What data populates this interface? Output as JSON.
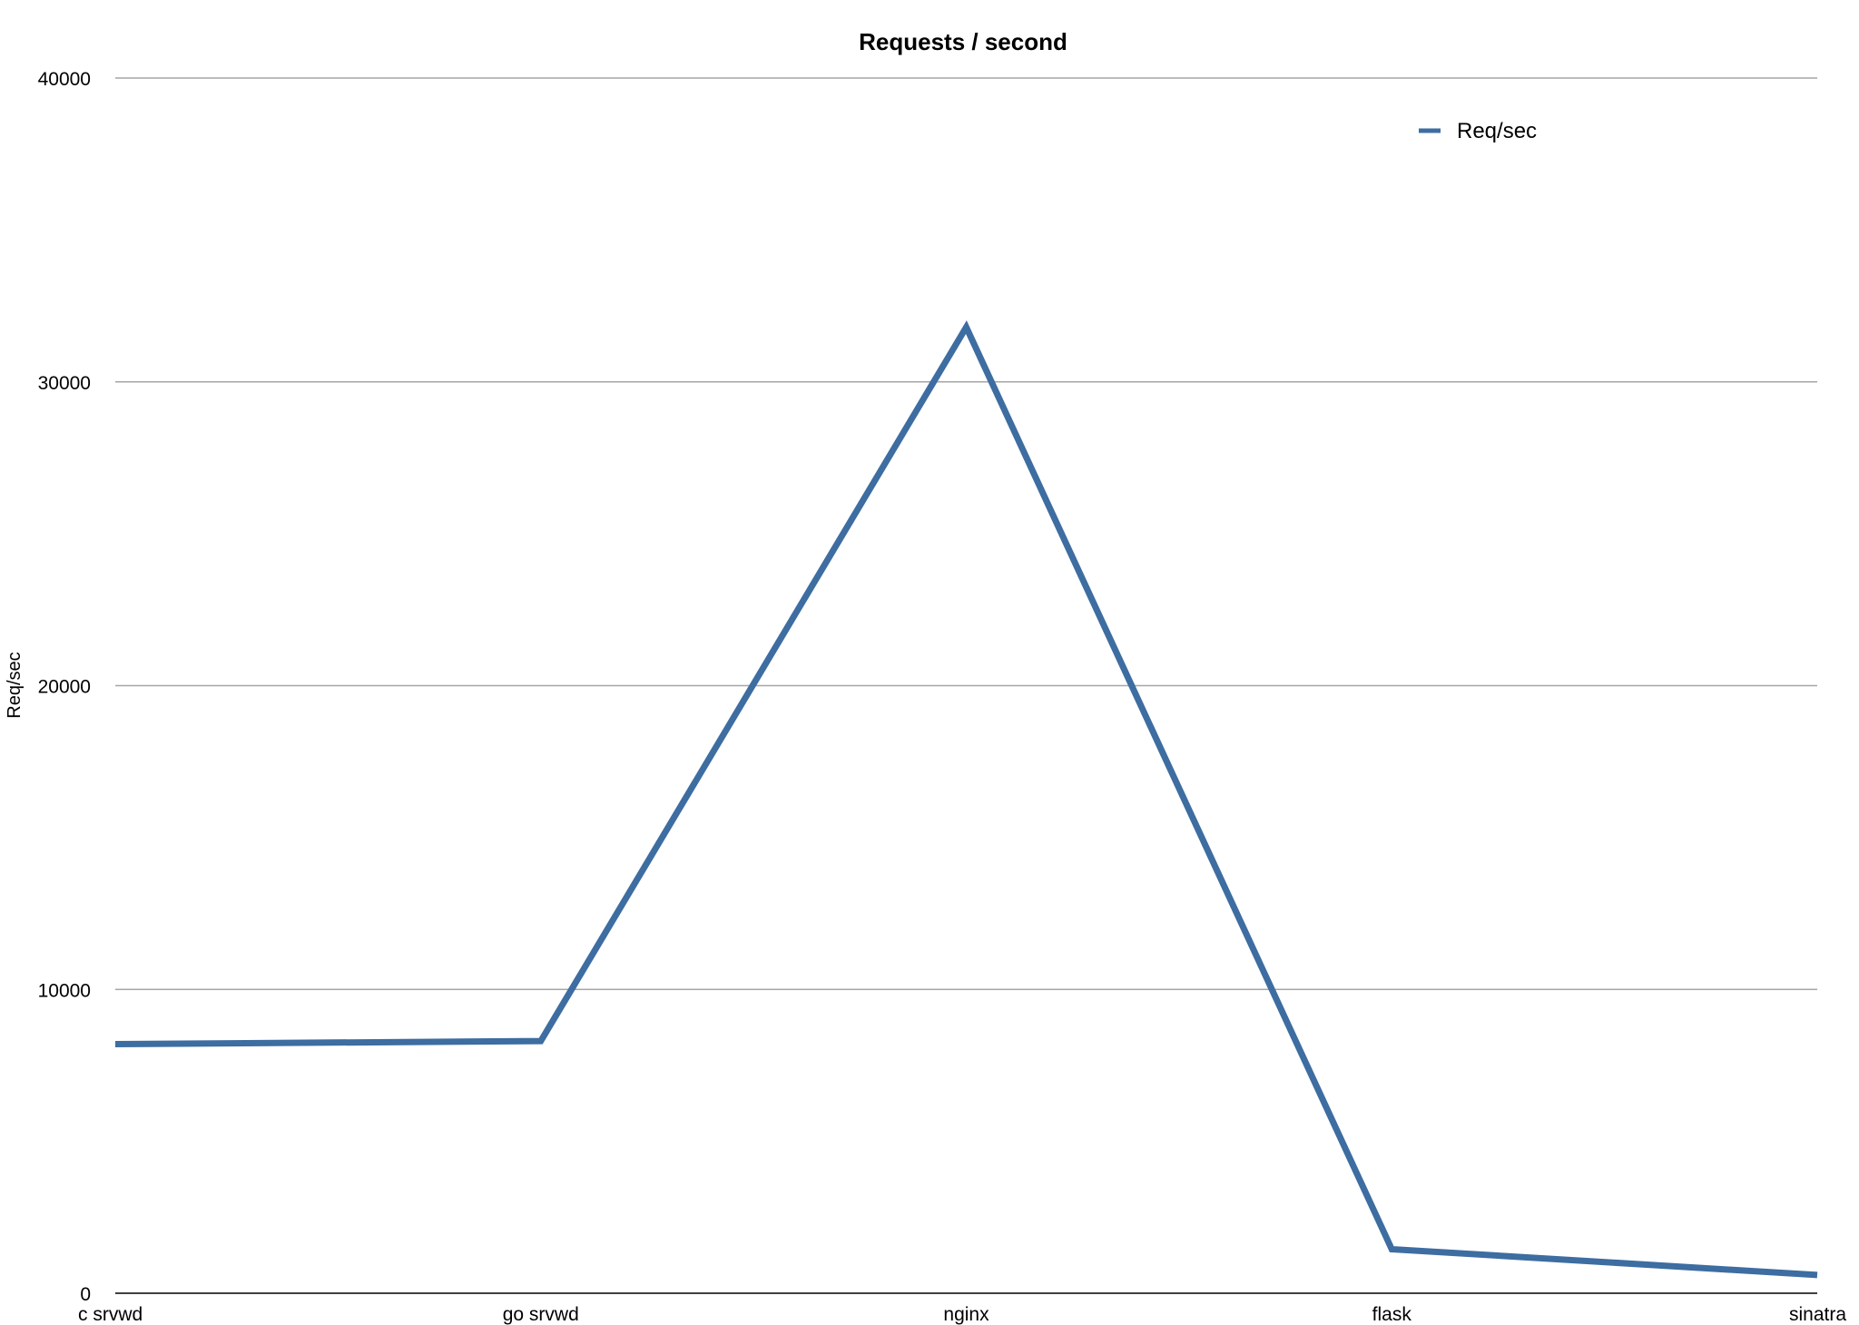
{
  "chart_data": {
    "type": "line",
    "title": "Requests / second",
    "xlabel": "",
    "ylabel": "Req/sec",
    "categories": [
      "c srvwd",
      "go srvwd",
      "nginx",
      "flask",
      "sinatra"
    ],
    "series": [
      {
        "name": "Req/sec",
        "color": "#3d6da1",
        "values": [
          8200,
          8300,
          31800,
          1450,
          600
        ]
      }
    ],
    "ylim": [
      0,
      40000
    ],
    "yticks": [
      0,
      10000,
      20000,
      30000,
      40000
    ],
    "grid": true,
    "legend": "top-right"
  }
}
